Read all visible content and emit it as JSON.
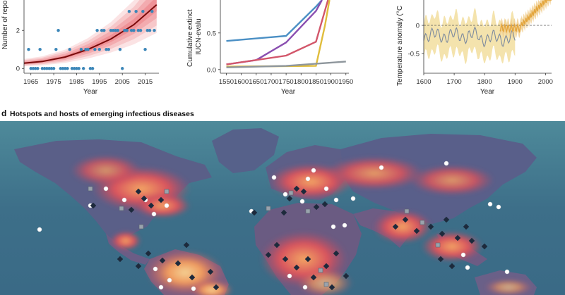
{
  "chart_data": [
    {
      "type": "scatter",
      "xlabel": "Year",
      "ylabel": "Number of repo",
      "xticks": [
        "1965",
        "1975",
        "1985",
        "1995",
        "2005",
        "2015"
      ],
      "yticks": [
        "0",
        "2"
      ],
      "xlim": [
        1962,
        2021
      ],
      "ylim": [
        -0.25,
        3.6
      ],
      "points": [
        [
          1964,
          1
        ],
        [
          1965,
          0
        ],
        [
          1966,
          0
        ],
        [
          1967,
          0
        ],
        [
          1968,
          0
        ],
        [
          1969,
          1
        ],
        [
          1970,
          0
        ],
        [
          1971,
          0
        ],
        [
          1972,
          0
        ],
        [
          1973,
          0
        ],
        [
          1974,
          0
        ],
        [
          1975,
          0
        ],
        [
          1976,
          1
        ],
        [
          1977,
          2
        ],
        [
          1978,
          0
        ],
        [
          1979,
          0
        ],
        [
          1980,
          0
        ],
        [
          1981,
          0
        ],
        [
          1982,
          1
        ],
        [
          1983,
          0
        ],
        [
          1984,
          0
        ],
        [
          1985,
          0
        ],
        [
          1986,
          0
        ],
        [
          1987,
          1
        ],
        [
          1988,
          0
        ],
        [
          1989,
          1
        ],
        [
          1990,
          1
        ],
        [
          1991,
          0
        ],
        [
          1992,
          0
        ],
        [
          1993,
          1
        ],
        [
          1994,
          2
        ],
        [
          1995,
          1
        ],
        [
          1996,
          2
        ],
        [
          1997,
          2
        ],
        [
          1998,
          1
        ],
        [
          1999,
          1
        ],
        [
          2000,
          2
        ],
        [
          2001,
          2
        ],
        [
          2002,
          2
        ],
        [
          2003,
          2
        ],
        [
          2004,
          1
        ],
        [
          2005,
          0
        ],
        [
          2006,
          2
        ],
        [
          2007,
          2
        ],
        [
          2008,
          3
        ],
        [
          2009,
          2
        ],
        [
          2010,
          2
        ],
        [
          2011,
          3
        ],
        [
          2012,
          2
        ],
        [
          2013,
          2
        ],
        [
          2014,
          3
        ],
        [
          2015,
          1
        ],
        [
          2016,
          2
        ],
        [
          2017,
          2
        ],
        [
          2018,
          3
        ],
        [
          2019,
          2
        ]
      ],
      "trend": [
        [
          1962,
          0.28
        ],
        [
          1970,
          0.37
        ],
        [
          1980,
          0.6
        ],
        [
          1990,
          1.0
        ],
        [
          2000,
          1.55
        ],
        [
          2010,
          2.3
        ],
        [
          2020,
          3.35
        ]
      ],
      "colors": {
        "points": "#3b86b8",
        "trend": "#7a0a0a",
        "band": "#e8646b"
      }
    },
    {
      "type": "line",
      "xlabel": "Year",
      "ylabel": "Cumulative extinct",
      "ylabel2": "IUCN-evalu",
      "xticks": [
        "1550",
        "1600",
        "1650",
        "1700",
        "1750",
        "1800",
        "1850",
        "1900",
        "1950"
      ],
      "yticks": [
        "0.0",
        "0.5"
      ],
      "xlim": [
        1530,
        1960
      ],
      "ylim": [
        -0.05,
        0.95
      ],
      "series": [
        {
          "color": "#4a8fc4",
          "points": [
            [
              1550,
              0.39
            ],
            [
              1750,
              0.46
            ],
            [
              1850,
              0.86
            ],
            [
              1870,
              0.95
            ]
          ]
        },
        {
          "color": "#8a4fb0",
          "points": [
            [
              1550,
              0.07
            ],
            [
              1650,
              0.13
            ],
            [
              1750,
              0.37
            ],
            [
              1850,
              0.8
            ],
            [
              1870,
              0.95
            ]
          ]
        },
        {
          "color": "#d2566a",
          "points": [
            [
              1550,
              0.07
            ],
            [
              1750,
              0.19
            ],
            [
              1850,
              0.38
            ],
            [
              1890,
              0.95
            ]
          ]
        },
        {
          "color": "#e0bd3c",
          "points": [
            [
              1550,
              0.04
            ],
            [
              1850,
              0.05
            ],
            [
              1880,
              0.6
            ],
            [
              1895,
              0.95
            ]
          ]
        },
        {
          "color": "#8e969c",
          "points": [
            [
              1550,
              0.03
            ],
            [
              1750,
              0.05
            ],
            [
              1950,
              0.11
            ]
          ]
        }
      ]
    },
    {
      "type": "line",
      "xlabel": "Year",
      "ylabel": "Temperature anomaly (°C",
      "xticks": [
        "1600",
        "1700",
        "1800",
        "1900",
        "2000"
      ],
      "yticks": [
        "0",
        "-0.5"
      ],
      "xlim": [
        1600,
        2020
      ],
      "ylim": [
        -0.85,
        0.45
      ],
      "reference_line": 0,
      "colors": {
        "band": "#f4e3ad",
        "reconstruction": "#7c8a9e",
        "instrumental": "#e3a53c",
        "instrumental_band": "#f1cf91"
      }
    }
  ],
  "panel_d": {
    "letter": "d",
    "title": "Hotspots and hosts of emerging infectious diseases",
    "colors": {
      "ocean": "#3e6f8a",
      "land_low": "#4a5f86",
      "hotspot_mid": "#d4505b",
      "hotspot_high": "#f0a05e",
      "hotspot_peak": "#f5d092"
    }
  }
}
